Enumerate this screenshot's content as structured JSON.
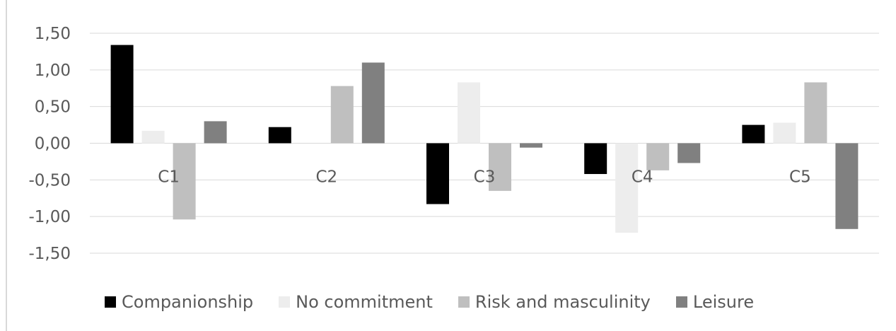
{
  "chart_data": {
    "type": "bar",
    "title": "",
    "xlabel": "",
    "ylabel": "",
    "ylim": [
      -1.5,
      1.5
    ],
    "yticks": [
      1.5,
      1.0,
      0.5,
      0.0,
      -0.5,
      -1.0,
      -1.5
    ],
    "ytick_labels": [
      "1,50",
      "1,00",
      "0,50",
      "0,00",
      "-0,50",
      "-1,00",
      "-1,50"
    ],
    "categories": [
      "C1",
      "C2",
      "C3",
      "C4",
      "C5"
    ],
    "series": [
      {
        "name": "Companionship",
        "color": "#000000",
        "values": [
          1.34,
          0.22,
          -0.83,
          -0.42,
          0.25
        ]
      },
      {
        "name": "No commitment",
        "color": "#ededed",
        "values": [
          0.17,
          0.0,
          0.83,
          -1.22,
          0.28
        ]
      },
      {
        "name": "Risk and masculinity",
        "color": "#bfbfbf",
        "values": [
          -1.04,
          0.78,
          -0.65,
          -0.37,
          0.83
        ]
      },
      {
        "name": "Leisure",
        "color": "#808080",
        "values": [
          0.3,
          1.1,
          -0.06,
          -0.27,
          -1.17
        ]
      }
    ],
    "grid": true,
    "legend_position": "bottom"
  }
}
